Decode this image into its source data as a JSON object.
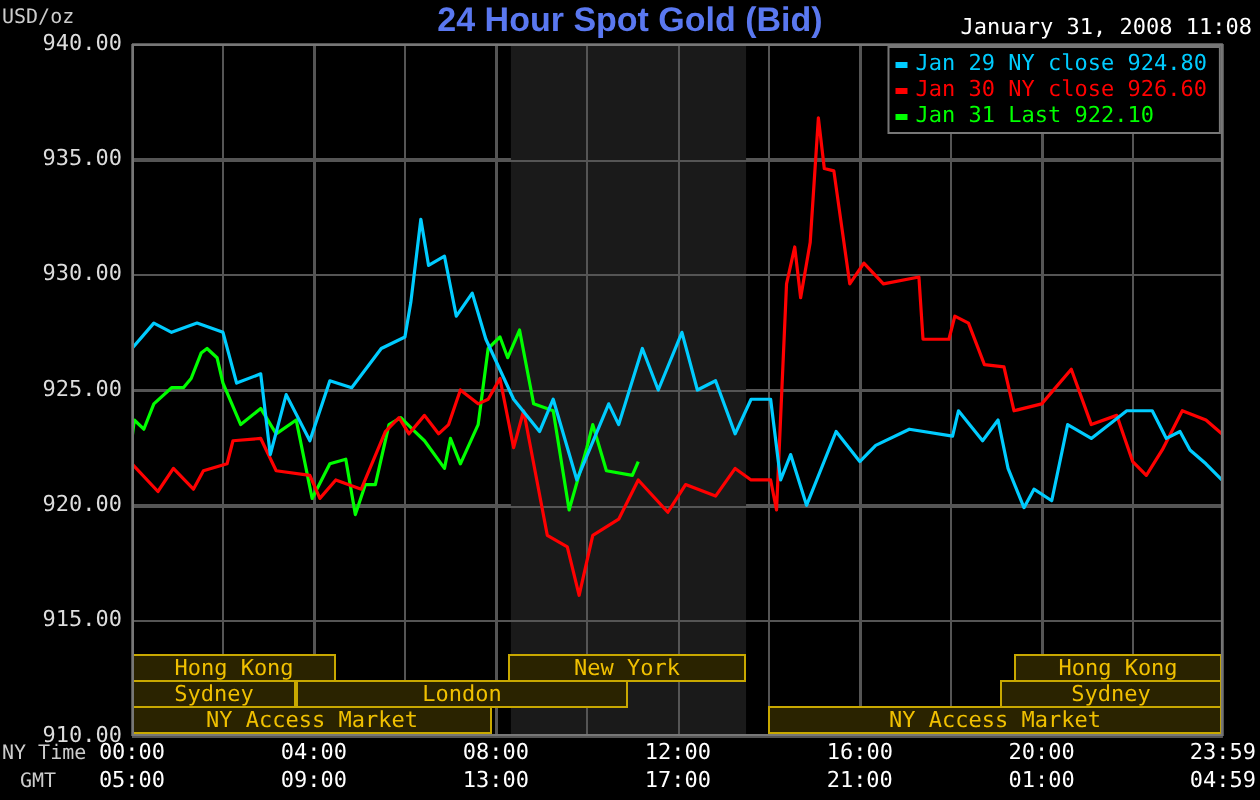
{
  "chart_data": {
    "type": "line",
    "title": "24 Hour Spot Gold (Bid)",
    "subtitle": "January 31, 2008 11:08",
    "ylabel": "USD/oz",
    "xlabel": "NY Time",
    "x2label": "GMT",
    "xlim": [
      0,
      23.983
    ],
    "xticks": [
      {
        "value": 0,
        "label": "00:00"
      },
      {
        "value": 2,
        "label": null
      },
      {
        "value": 4,
        "label": "04:00"
      },
      {
        "value": 6,
        "label": null
      },
      {
        "value": 8,
        "label": "08:00"
      },
      {
        "value": 10,
        "label": null
      },
      {
        "value": 12,
        "label": "12:00"
      },
      {
        "value": 14,
        "label": null
      },
      {
        "value": 16,
        "label": "16:00"
      },
      {
        "value": 18,
        "label": null
      },
      {
        "value": 20,
        "label": "20:00"
      },
      {
        "value": 22,
        "label": null
      },
      {
        "value": 23.983,
        "label": "23:59"
      }
    ],
    "x2lim": [
      "2008-01-31T05:00",
      "2008-02-01T04:59"
    ],
    "x2ticks": [
      {
        "value": "2008-01-31T05:00",
        "label": "05:00"
      },
      {
        "value": "2008-01-31T09:00",
        "label": "09:00"
      },
      {
        "value": "2008-01-31T13:00",
        "label": "13:00"
      },
      {
        "value": "2008-01-31T17:00",
        "label": "17:00"
      },
      {
        "value": "2008-01-31T21:00",
        "label": "21:00"
      },
      {
        "value": "2008-02-01T01:00",
        "label": "01:00"
      },
      {
        "value": "2008-02-01T04:59",
        "label": "04:59"
      }
    ],
    "ylim": [
      910,
      940
    ],
    "yticks": [
      {
        "value": 910,
        "label": "910.00"
      },
      {
        "value": 915,
        "label": "915.00"
      },
      {
        "value": 920,
        "label": "920.00"
      },
      {
        "value": 925,
        "label": "925.00"
      },
      {
        "value": 930,
        "label": "930.00"
      },
      {
        "value": 935,
        "label": "935.00"
      },
      {
        "value": 940,
        "label": "940.00"
      }
    ],
    "grid": true,
    "legend": "top right",
    "marker": "none",
    "bands": [
      {
        "axis": "x",
        "from": 8.33,
        "to": 13.5,
        "label": null,
        "color": "#1a1a1a"
      },
      {
        "axis": "x",
        "from": 0,
        "to": 4.5,
        "label": "Hong Kong",
        "color": "#2a2300"
      },
      {
        "axis": "x",
        "from": 0,
        "to": 3.6,
        "label": "Sydney",
        "color": "#2a2300"
      },
      {
        "axis": "x",
        "from": 3.6,
        "to": 10.9,
        "label": "London",
        "color": "#2a2300"
      },
      {
        "axis": "x",
        "from": 0,
        "to": 7.9,
        "label": "NY Access Market",
        "color": "#2a2300"
      },
      {
        "axis": "x",
        "from": 8.26,
        "to": 13.5,
        "label": "New York",
        "color": "#2a2300"
      },
      {
        "axis": "x",
        "from": 19.4,
        "to": 23.983,
        "label": "Hong Kong",
        "color": "#2a2300"
      },
      {
        "axis": "x",
        "from": 19.1,
        "to": 23.983,
        "label": "Sydney",
        "color": "#2a2300"
      },
      {
        "axis": "x",
        "from": 14,
        "to": 23.983,
        "label": "NY Access Market",
        "color": "#2a2300"
      }
    ],
    "series": [
      {
        "name": "Jan 29 NY close 924.80",
        "color": "#00ccff",
        "x": [
          0,
          0.48,
          0.87,
          1.43,
          2.0,
          2.3,
          2.83,
          3.04,
          3.39,
          3.91,
          4.35,
          4.83,
          5.48,
          6.0,
          6.13,
          6.35,
          6.52,
          6.87,
          7.13,
          7.48,
          7.78,
          8.39,
          8.96,
          9.26,
          9.78,
          10.48,
          10.7,
          11.22,
          11.57,
          12.09,
          12.43,
          12.83,
          13.26,
          13.61,
          14.04,
          14.26,
          14.48,
          14.83,
          15.48,
          16.0,
          16.35,
          17.09,
          18.04,
          18.17,
          18.7,
          19.04,
          19.26,
          19.61,
          19.83,
          20.22,
          20.57,
          21.09,
          21.87,
          22.43,
          22.74,
          23.04,
          23.26,
          23.61,
          23.96
        ],
        "values": [
          926.8,
          927.9,
          927.5,
          927.9,
          927.5,
          925.3,
          925.7,
          922.2,
          924.8,
          922.8,
          925.4,
          925.1,
          926.8,
          927.3,
          928.8,
          932.4,
          930.4,
          930.8,
          928.2,
          929.2,
          927.2,
          924.6,
          923.2,
          924.6,
          921.1,
          924.4,
          923.5,
          926.8,
          925.0,
          927.5,
          925.0,
          925.4,
          923.1,
          924.6,
          924.6,
          921.1,
          922.2,
          920.0,
          923.2,
          921.9,
          922.6,
          923.3,
          923.0,
          924.1,
          922.8,
          923.7,
          921.6,
          919.9,
          920.7,
          920.2,
          923.5,
          922.9,
          924.1,
          924.1,
          922.9,
          923.2,
          922.4,
          921.8,
          921.1
        ]
      },
      {
        "name": "Jan 30 NY close 926.60",
        "color": "#ff0000",
        "x": [
          0,
          0.57,
          0.91,
          1.35,
          1.57,
          2.09,
          2.22,
          2.83,
          3.17,
          3.91,
          4.13,
          4.48,
          5.04,
          5.57,
          5.87,
          6.09,
          6.43,
          6.74,
          6.96,
          7.22,
          7.61,
          7.83,
          8.09,
          8.39,
          8.61,
          9.13,
          9.57,
          9.83,
          10.13,
          10.7,
          11.13,
          11.78,
          12.17,
          12.83,
          13.26,
          13.61,
          14.04,
          14.17,
          14.39,
          14.57,
          14.7,
          14.91,
          15.09,
          15.22,
          15.43,
          15.78,
          16.09,
          16.52,
          17.3,
          17.39,
          17.96,
          18.09,
          18.39,
          18.74,
          19.17,
          19.39,
          20.0,
          20.65,
          21.09,
          21.65,
          22.0,
          22.3,
          22.65,
          23.09,
          23.61,
          23.96
        ],
        "values": [
          921.8,
          920.6,
          921.6,
          920.7,
          921.5,
          921.8,
          922.8,
          922.9,
          921.5,
          921.3,
          920.3,
          921.1,
          920.7,
          923.2,
          923.8,
          923.1,
          923.9,
          923.1,
          923.5,
          925.0,
          924.4,
          924.6,
          925.5,
          922.5,
          924.1,
          918.7,
          918.2,
          916.1,
          918.7,
          919.4,
          921.1,
          919.7,
          920.9,
          920.4,
          921.6,
          921.1,
          921.1,
          919.8,
          929.6,
          931.2,
          929.0,
          931.4,
          936.8,
          934.6,
          934.5,
          929.6,
          930.5,
          929.6,
          929.9,
          927.2,
          927.2,
          928.2,
          927.9,
          926.1,
          926.0,
          924.1,
          924.4,
          925.9,
          923.5,
          923.9,
          921.9,
          921.3,
          922.4,
          924.1,
          923.7,
          923.1
        ]
      },
      {
        "name": "Jan 31 Last 922.10",
        "color": "#00ff00",
        "x": [
          0,
          0.05,
          0.26,
          0.48,
          0.87,
          1.13,
          1.3,
          1.52,
          1.65,
          1.87,
          2.0,
          2.39,
          2.83,
          3.17,
          3.61,
          3.96,
          4.35,
          4.7,
          4.91,
          5.13,
          5.35,
          5.65,
          5.91,
          6.22,
          6.43,
          6.87,
          7.0,
          7.22,
          7.61,
          7.83,
          8.09,
          8.26,
          8.52,
          8.83,
          9.26,
          9.61,
          10.0,
          10.13,
          10.43,
          11.0,
          11.13
        ],
        "values": [
          922.9,
          923.7,
          923.3,
          924.4,
          925.1,
          925.1,
          925.5,
          926.6,
          926.8,
          926.4,
          925.3,
          923.5,
          924.2,
          923.1,
          923.7,
          920.3,
          921.8,
          922.0,
          919.6,
          920.9,
          920.9,
          923.5,
          923.8,
          923.2,
          922.8,
          921.6,
          922.9,
          921.8,
          923.5,
          926.8,
          927.3,
          926.4,
          927.6,
          924.4,
          924.1,
          919.8,
          922.5,
          923.5,
          921.5,
          921.3,
          921.9
        ]
      }
    ]
  }
}
